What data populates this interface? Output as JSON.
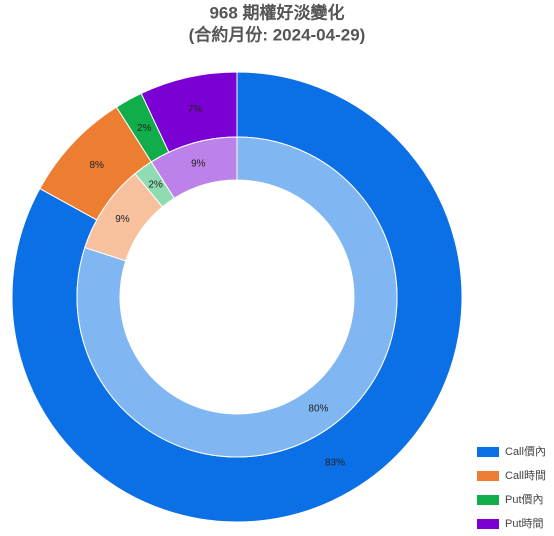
{
  "chart_data": {
    "type": "donut",
    "title": "968 期權好淡變化",
    "subtitle": "(合約月份: 2024-04-29)",
    "categories": [
      "Call價內",
      "Call時間",
      "Put價內",
      "Put時間"
    ],
    "colors": [
      "#0b6fe6",
      "#ed7d31",
      "#11ad4a",
      "#7a00d4"
    ],
    "series": [
      {
        "values": [
          83,
          8,
          2,
          7
        ],
        "value_labels": [
          "83%",
          "8%",
          "2%",
          "7%"
        ],
        "colors": [
          "#0b6fe6",
          "#ed7d31",
          "#11ad4a",
          "#7a00d4"
        ]
      },
      {
        "values": [
          80,
          9,
          2,
          9
        ],
        "value_labels": [
          "80%",
          "9%",
          "2%",
          "9%"
        ],
        "colors": [
          "#80b6f1",
          "#f7c19d",
          "#8fdcb3",
          "#bd82ea"
        ]
      }
    ],
    "legend": "bottom-right"
  }
}
